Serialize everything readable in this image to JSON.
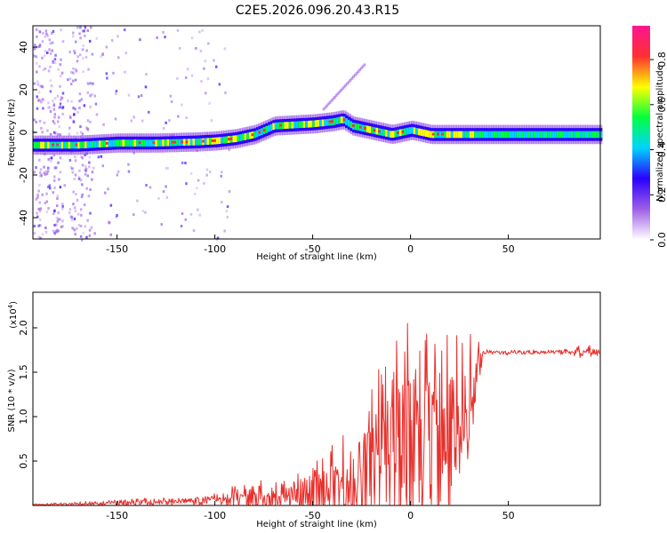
{
  "title": "C2E5.2026.096.20.43.R15",
  "chart_data": [
    {
      "type": "heatmap",
      "name": "spectrogram",
      "title": "C2E5.2026.096.20.43.R15",
      "xlabel": "Height of straight line (km)",
      "ylabel": "Frequency (Hz)",
      "xlim": [
        -193,
        97
      ],
      "ylim": [
        -50,
        50
      ],
      "xticks": [
        -150,
        -100,
        -50,
        0,
        50
      ],
      "xtick_labels": [
        "-150",
        "-100",
        "-50",
        "0",
        "50"
      ],
      "yticks": [
        -40,
        -20,
        0,
        20,
        40
      ],
      "ytick_labels": [
        "-40",
        "-20",
        "0",
        "20",
        "40"
      ],
      "ridge": {
        "x": [
          -193,
          -170,
          -150,
          -130,
          -110,
          -100,
          -90,
          -80,
          -70,
          -60,
          -50,
          -40,
          -35,
          -30,
          -20,
          -10,
          0,
          10,
          20,
          30,
          40,
          60,
          80,
          97
        ],
        "y": [
          -6,
          -6,
          -5,
          -5,
          -4.5,
          -4,
          -3,
          -1,
          3,
          3.5,
          4,
          5,
          6,
          3,
          1,
          -1,
          1,
          -1,
          -1,
          -1,
          -1,
          -1,
          -1,
          -1
        ]
      },
      "colorbar": {
        "label": "Normalized spectral amplitude",
        "range": [
          0,
          0.95
        ],
        "ticks": [
          0.0,
          0.2,
          0.4,
          0.6,
          0.8
        ],
        "tick_labels": [
          "0.0",
          "0.2",
          "0.4",
          "0.6",
          "0.8"
        ],
        "colors": [
          "#ffffff",
          "#9f5fe6",
          "#2a00ff",
          "#00d4ff",
          "#00ff40",
          "#ffff00",
          "#ff3030",
          "#ff1493"
        ]
      }
    },
    {
      "type": "line",
      "name": "snr",
      "xlabel": "Height of straight line (km)",
      "ylabel": "SNR (10 * v/v)",
      "multiplier": "(x10",
      "multiplier_exp": "4",
      "multiplier_close": ")",
      "xlim": [
        -193,
        97
      ],
      "ylim": [
        0,
        2.4
      ],
      "xticks": [
        -150,
        -100,
        -50,
        0,
        50
      ],
      "xtick_labels": [
        "-150",
        "-100",
        "-50",
        "0",
        "50"
      ],
      "yticks": [
        0.5,
        1.0,
        1.5,
        2.0
      ],
      "ytick_labels": [
        "0.5",
        "1.0",
        "1.5",
        "2.0"
      ],
      "color": "#e8302c",
      "envelope": {
        "x": [
          -193,
          -170,
          -150,
          -130,
          -115,
          -100,
          -90,
          -82,
          -75,
          -65,
          -55,
          -45,
          -35,
          -28,
          -22,
          -15,
          -8,
          0,
          8,
          15,
          20,
          25,
          30,
          34,
          37,
          40,
          60,
          80,
          90,
          97
        ],
        "base": [
          0.01,
          0.02,
          0.03,
          0.04,
          0.05,
          0.06,
          0.08,
          0.12,
          0.1,
          0.08,
          0.1,
          0.15,
          0.2,
          0.3,
          0.4,
          0.5,
          0.55,
          0.6,
          0.65,
          0.7,
          0.75,
          0.9,
          1.2,
          1.5,
          1.72,
          1.72,
          1.72,
          1.73,
          1.72,
          1.72
        ],
        "amp": [
          0.01,
          0.02,
          0.04,
          0.05,
          0.06,
          0.08,
          0.15,
          0.25,
          0.2,
          0.2,
          0.3,
          0.45,
          0.6,
          0.8,
          0.9,
          1.1,
          1.3,
          1.5,
          1.4,
          1.5,
          1.2,
          1.0,
          0.8,
          0.4,
          0.05,
          0.03,
          0.03,
          0.03,
          0.1,
          0.05
        ]
      }
    }
  ]
}
